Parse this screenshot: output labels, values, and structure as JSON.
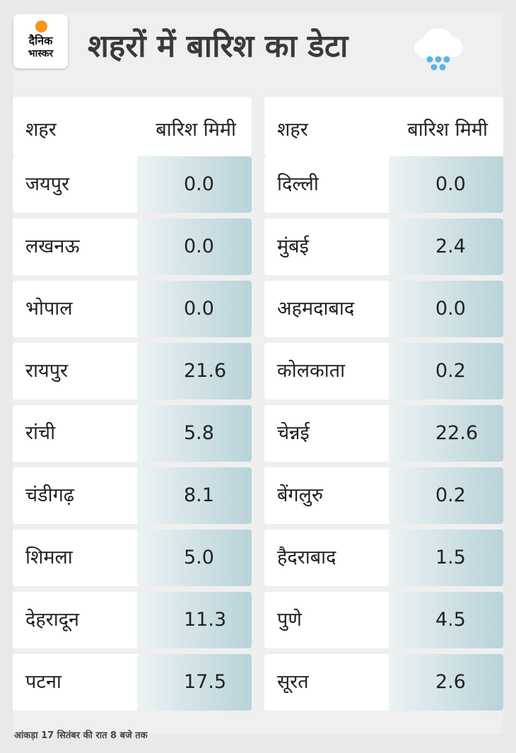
{
  "brand": {
    "line1": "दैनिक",
    "line2": "भास्कर"
  },
  "title": "शहरों में बारिश का डेटा",
  "header": {
    "city": "शहर",
    "rain": "बारिश मिमी"
  },
  "left_table": [
    {
      "city": "जयपुर",
      "value": "0.0"
    },
    {
      "city": "लखनऊ",
      "value": "0.0"
    },
    {
      "city": "भोपाल",
      "value": "0.0"
    },
    {
      "city": "रायपुर",
      "value": "21.6"
    },
    {
      "city": "रांची",
      "value": "5.8"
    },
    {
      "city": "चंडीगढ़",
      "value": "8.1"
    },
    {
      "city": "शिमला",
      "value": "5.0"
    },
    {
      "city": "देहरादून",
      "value": "11.3"
    },
    {
      "city": "पटना",
      "value": "17.5"
    }
  ],
  "right_table": [
    {
      "city": "दिल्ली",
      "value": "0.0"
    },
    {
      "city": "मुंबई",
      "value": "2.4"
    },
    {
      "city": "अहमदाबाद",
      "value": "0.0"
    },
    {
      "city": "कोलकाता",
      "value": "0.2"
    },
    {
      "city": "चेन्नई",
      "value": "22.6"
    },
    {
      "city": "बेंगलुरु",
      "value": "0.2"
    },
    {
      "city": "हैदराबाद",
      "value": "1.5"
    },
    {
      "city": "पुणे",
      "value": "4.5"
    },
    {
      "city": "सूरत",
      "value": "2.6"
    }
  ],
  "footnote": "आंकड़ा 17 सितंबर की रात 8 बजे तक",
  "icons": {
    "logo": "sun-logo",
    "weather": "rain-cloud-icon"
  },
  "colors": {
    "sun": "#f7941d",
    "rain_drop": "#5ab4e6",
    "cloud": "#ffffff"
  }
}
